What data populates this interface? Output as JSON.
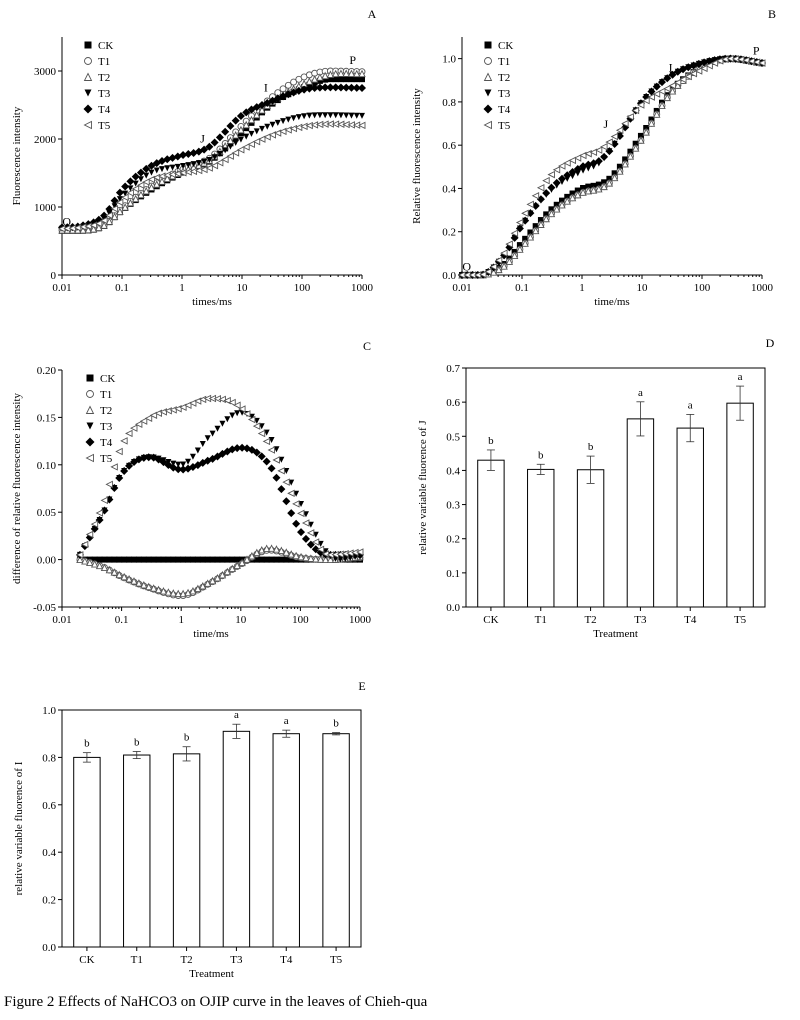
{
  "caption": "Figure 2 Effects of NaHCO3 on OJIP curve in the leaves of Chieh-qua",
  "markers": {
    "CK": "square",
    "T1": "circle-open",
    "T2": "triangle-open",
    "T3": "triangle-down",
    "T4": "diamond",
    "T5": "triangle-left-open"
  },
  "chart_data": [
    {
      "panel": "A",
      "type": "scatter",
      "xlabel": "times/ms",
      "ylabel": "Fluorescence intensity",
      "xscale": "log",
      "xlim": [
        0.01,
        1000
      ],
      "ylim": [
        0,
        3500
      ],
      "xticks": [
        0.01,
        0.1,
        1,
        10,
        100,
        1000
      ],
      "xticklabels": [
        "0.01",
        "0.1",
        "1",
        "10",
        "100",
        "1000"
      ],
      "yticks": [
        0,
        1000,
        2000,
        3000
      ],
      "yticklabels": [
        "0",
        "1000",
        "2000",
        "3000"
      ],
      "legend": "top-left",
      "annotations": [
        {
          "text": "O",
          "x": 0.012,
          "y": 730
        },
        {
          "text": "J",
          "x": 2.2,
          "y": 1950
        },
        {
          "text": "I",
          "x": 25,
          "y": 2700
        },
        {
          "text": "P",
          "x": 700,
          "y": 3100
        }
      ],
      "series": [
        {
          "name": "CK",
          "x": [
            0.01,
            0.02,
            0.05,
            0.1,
            0.3,
            1,
            2,
            3,
            10,
            30,
            100,
            300,
            1000
          ],
          "y": [
            650,
            650,
            720,
            950,
            1250,
            1500,
            1600,
            1680,
            2100,
            2500,
            2750,
            2880,
            2880
          ]
        },
        {
          "name": "T1",
          "x": [
            0.01,
            0.02,
            0.05,
            0.1,
            0.3,
            1,
            2,
            3,
            10,
            30,
            100,
            300,
            1000
          ],
          "y": [
            660,
            660,
            730,
            980,
            1300,
            1550,
            1650,
            1730,
            2200,
            2600,
            2900,
            3000,
            2990
          ]
        },
        {
          "name": "T2",
          "x": [
            0.01,
            0.02,
            0.05,
            0.1,
            0.3,
            1,
            2,
            3,
            10,
            30,
            100,
            300,
            1000
          ],
          "y": [
            660,
            660,
            730,
            960,
            1280,
            1520,
            1620,
            1700,
            2150,
            2530,
            2800,
            2950,
            2960
          ]
        },
        {
          "name": "T3",
          "x": [
            0.01,
            0.02,
            0.05,
            0.1,
            0.3,
            1,
            2,
            3,
            10,
            30,
            100,
            300,
            1000
          ],
          "y": [
            680,
            700,
            820,
            1150,
            1500,
            1600,
            1650,
            1700,
            2000,
            2200,
            2330,
            2350,
            2340
          ]
        },
        {
          "name": "T4",
          "x": [
            0.01,
            0.02,
            0.05,
            0.1,
            0.3,
            1,
            2,
            3,
            10,
            30,
            100,
            300,
            1000
          ],
          "y": [
            700,
            720,
            870,
            1250,
            1600,
            1760,
            1820,
            1900,
            2350,
            2550,
            2720,
            2760,
            2750
          ]
        },
        {
          "name": "T5",
          "x": [
            0.01,
            0.02,
            0.05,
            0.1,
            0.3,
            1,
            2,
            3,
            10,
            30,
            100,
            300,
            1000
          ],
          "y": [
            680,
            700,
            800,
            1100,
            1400,
            1500,
            1540,
            1580,
            1850,
            2050,
            2180,
            2220,
            2200
          ]
        }
      ]
    },
    {
      "panel": "B",
      "type": "scatter",
      "xlabel": "time/ms",
      "ylabel": "Relative fluorescence intensity",
      "xscale": "log",
      "xlim": [
        0.01,
        1000
      ],
      "ylim": [
        0,
        1.1
      ],
      "xticks": [
        0.01,
        0.1,
        1,
        10,
        100,
        1000
      ],
      "xticklabels": [
        "0.01",
        "0.1",
        "1",
        "10",
        "100",
        "1000"
      ],
      "yticks": [
        0,
        0.2,
        0.4,
        0.6,
        0.8,
        1.0
      ],
      "yticklabels": [
        "0.0",
        "0.2",
        "0.4",
        "0.6",
        "0.8",
        "1.0"
      ],
      "legend": "top-left",
      "annotations": [
        {
          "text": "O",
          "x": 0.012,
          "y": 0.02
        },
        {
          "text": "J",
          "x": 2.5,
          "y": 0.68
        },
        {
          "text": "I",
          "x": 30,
          "y": 0.94
        },
        {
          "text": "P",
          "x": 800,
          "y": 1.02
        }
      ],
      "series": [
        {
          "name": "CK",
          "x": [
            0.01,
            0.02,
            0.05,
            0.1,
            0.3,
            1,
            2,
            3,
            10,
            30,
            100,
            300,
            1000
          ],
          "y": [
            0,
            0,
            0.05,
            0.15,
            0.3,
            0.4,
            0.42,
            0.45,
            0.65,
            0.85,
            0.96,
            1.0,
            0.98
          ]
        },
        {
          "name": "T1",
          "x": [
            0.01,
            0.02,
            0.05,
            0.1,
            0.3,
            1,
            2,
            3,
            10,
            30,
            100,
            300,
            1000
          ],
          "y": [
            0,
            0,
            0.04,
            0.13,
            0.28,
            0.38,
            0.4,
            0.43,
            0.63,
            0.84,
            0.96,
            1.0,
            0.98
          ]
        },
        {
          "name": "T2",
          "x": [
            0.01,
            0.02,
            0.05,
            0.1,
            0.3,
            1,
            2,
            3,
            10,
            30,
            100,
            300,
            1000
          ],
          "y": [
            0,
            0,
            0.04,
            0.13,
            0.28,
            0.38,
            0.4,
            0.43,
            0.63,
            0.84,
            0.96,
            1.0,
            0.98
          ]
        },
        {
          "name": "T3",
          "x": [
            0.01,
            0.02,
            0.05,
            0.1,
            0.3,
            1,
            2,
            3,
            10,
            30,
            100,
            300,
            1000
          ],
          "y": [
            0,
            0,
            0.09,
            0.23,
            0.39,
            0.48,
            0.52,
            0.58,
            0.8,
            0.92,
            0.98,
            1.0,
            0.98
          ]
        },
        {
          "name": "T4",
          "x": [
            0.01,
            0.02,
            0.05,
            0.1,
            0.3,
            1,
            2,
            3,
            10,
            30,
            100,
            300,
            1000
          ],
          "y": [
            0,
            0,
            0.09,
            0.23,
            0.4,
            0.5,
            0.53,
            0.58,
            0.8,
            0.92,
            0.98,
            1.0,
            0.98
          ]
        },
        {
          "name": "T5",
          "x": [
            0.01,
            0.02,
            0.05,
            0.1,
            0.3,
            1,
            2,
            3,
            10,
            30,
            100,
            300,
            1000
          ],
          "y": [
            0,
            0,
            0.1,
            0.26,
            0.46,
            0.55,
            0.58,
            0.62,
            0.79,
            0.87,
            0.95,
            1.0,
            0.98
          ]
        }
      ]
    },
    {
      "panel": "C",
      "type": "scatter",
      "xlabel": "time/ms",
      "ylabel": "difference of relative fluorescence intensity",
      "xscale": "log",
      "xlim": [
        0.01,
        1000
      ],
      "ylim": [
        -0.05,
        0.2
      ],
      "xticks": [
        0.01,
        0.1,
        1,
        10,
        100,
        1000
      ],
      "xticklabels": [
        "0.01",
        "0.1",
        "1",
        "10",
        "100",
        "1000"
      ],
      "yticks": [
        -0.05,
        0,
        0.05,
        0.1,
        0.15,
        0.2
      ],
      "yticklabels": [
        "-0.05",
        "0.00",
        "0.05",
        "0.10",
        "0.15",
        "0.20"
      ],
      "legend": "top-right",
      "series": [
        {
          "name": "CK",
          "x": [
            0.02,
            0.05,
            0.1,
            0.3,
            1,
            3,
            10,
            30,
            100,
            300,
            1000
          ],
          "y": [
            0,
            0,
            0,
            0,
            0,
            0,
            0,
            0,
            0,
            0,
            0
          ]
        },
        {
          "name": "T1",
          "x": [
            0.02,
            0.05,
            0.1,
            0.3,
            1,
            3,
            10,
            30,
            100,
            300,
            1000
          ],
          "y": [
            0,
            -0.008,
            -0.018,
            -0.03,
            -0.038,
            -0.025,
            -0.005,
            0.01,
            0.002,
            0,
            0.002
          ]
        },
        {
          "name": "T2",
          "x": [
            0.02,
            0.05,
            0.1,
            0.3,
            1,
            3,
            10,
            30,
            100,
            300,
            1000
          ],
          "y": [
            0,
            -0.008,
            -0.017,
            -0.029,
            -0.036,
            -0.024,
            -0.004,
            0.012,
            0.003,
            0,
            0.003
          ]
        },
        {
          "name": "T3",
          "x": [
            0.02,
            0.05,
            0.1,
            0.3,
            1,
            3,
            10,
            30,
            100,
            300,
            1000
          ],
          "y": [
            0.005,
            0.05,
            0.09,
            0.108,
            0.1,
            0.13,
            0.155,
            0.13,
            0.06,
            0.005,
            0.003
          ]
        },
        {
          "name": "T4",
          "x": [
            0.02,
            0.05,
            0.1,
            0.3,
            1,
            3,
            10,
            30,
            100,
            300,
            1000
          ],
          "y": [
            0.005,
            0.05,
            0.09,
            0.108,
            0.095,
            0.105,
            0.118,
            0.1,
            0.03,
            0.005,
            0.005
          ]
        },
        {
          "name": "T5",
          "x": [
            0.02,
            0.05,
            0.1,
            0.3,
            1,
            3,
            10,
            30,
            100,
            300,
            1000
          ],
          "y": [
            0.005,
            0.06,
            0.12,
            0.15,
            0.16,
            0.17,
            0.16,
            0.12,
            0.05,
            0.005,
            0.008
          ]
        }
      ]
    },
    {
      "panel": "D",
      "type": "bar",
      "xlabel": "Treatment",
      "ylabel": "relative variable fluorence of  J",
      "categories": [
        "CK",
        "T1",
        "T2",
        "T3",
        "T4",
        "T5"
      ],
      "values": [
        0.43,
        0.403,
        0.402,
        0.551,
        0.524,
        0.597
      ],
      "errors": [
        0.03,
        0.015,
        0.04,
        0.05,
        0.04,
        0.05
      ],
      "letters": [
        "b",
        "b",
        "b",
        "a",
        "a",
        "a"
      ],
      "ylim": [
        0,
        0.7
      ],
      "yticks": [
        0,
        0.1,
        0.2,
        0.3,
        0.4,
        0.5,
        0.6,
        0.7
      ],
      "yticklabels": [
        "0.0",
        "0.1",
        "0.2",
        "0.3",
        "0.4",
        "0.5",
        "0.6",
        "0.7"
      ]
    },
    {
      "panel": "E",
      "type": "bar",
      "xlabel": "Treatment",
      "ylabel": "relative variable fluorence of  I",
      "categories": [
        "CK",
        "T1",
        "T2",
        "T3",
        "T4",
        "T5"
      ],
      "values": [
        0.8,
        0.81,
        0.815,
        0.91,
        0.9,
        0.9
      ],
      "errors": [
        0.02,
        0.015,
        0.03,
        0.03,
        0.015,
        0.005
      ],
      "letters": [
        "b",
        "b",
        "b",
        "a",
        "a",
        "b"
      ],
      "ylim": [
        0,
        1.0
      ],
      "yticks": [
        0,
        0.2,
        0.4,
        0.6,
        0.8,
        1.0
      ],
      "yticklabels": [
        "0.0",
        "0.2",
        "0.4",
        "0.6",
        "0.8",
        "1.0"
      ]
    }
  ]
}
